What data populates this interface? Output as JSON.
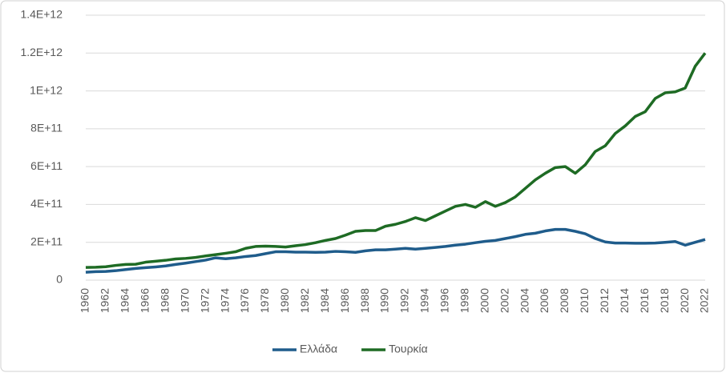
{
  "chart_data": {
    "type": "line",
    "x": [
      1960,
      1961,
      1962,
      1963,
      1964,
      1965,
      1966,
      1967,
      1968,
      1969,
      1970,
      1971,
      1972,
      1973,
      1974,
      1975,
      1976,
      1977,
      1978,
      1979,
      1980,
      1981,
      1982,
      1983,
      1984,
      1985,
      1986,
      1987,
      1988,
      1989,
      1990,
      1991,
      1992,
      1993,
      1994,
      1995,
      1996,
      1997,
      1998,
      1999,
      2000,
      2001,
      2002,
      2003,
      2004,
      2005,
      2006,
      2007,
      2008,
      2009,
      2010,
      2011,
      2012,
      2013,
      2014,
      2015,
      2016,
      2017,
      2018,
      2019,
      2020,
      2021,
      2022
    ],
    "series": [
      {
        "name": "Ελλάδα",
        "color": "#1f5c8b",
        "values": [
          42000000000.0,
          45000000000.0,
          46000000000.0,
          50000000000.0,
          56000000000.0,
          62000000000.0,
          66000000000.0,
          70000000000.0,
          75000000000.0,
          83000000000.0,
          90000000000.0,
          98000000000.0,
          106000000000.0,
          118000000000.0,
          113000000000.0,
          118000000000.0,
          125000000000.0,
          130000000000.0,
          140000000000.0,
          150000000000.0,
          150000000000.0,
          148000000000.0,
          148000000000.0,
          147000000000.0,
          148000000000.0,
          152000000000.0,
          150000000000.0,
          147000000000.0,
          155000000000.0,
          160000000000.0,
          160000000000.0,
          164000000000.0,
          168000000000.0,
          164000000000.0,
          168000000000.0,
          173000000000.0,
          178000000000.0,
          185000000000.0,
          190000000000.0,
          198000000000.0,
          205000000000.0,
          210000000000.0,
          220000000000.0,
          230000000000.0,
          242000000000.0,
          248000000000.0,
          260000000000.0,
          268000000000.0,
          268000000000.0,
          258000000000.0,
          245000000000.0,
          220000000000.0,
          202000000000.0,
          196000000000.0,
          196000000000.0,
          195000000000.0,
          195000000000.0,
          196000000000.0,
          200000000000.0,
          204000000000.0,
          185000000000.0,
          200000000000.0,
          215000000000.0
        ]
      },
      {
        "name": "Τουρκία",
        "color": "#1e6b24",
        "values": [
          67000000000.0,
          68000000000.0,
          71000000000.0,
          78000000000.0,
          83000000000.0,
          84000000000.0,
          95000000000.0,
          100000000000.0,
          105000000000.0,
          112000000000.0,
          115000000000.0,
          120000000000.0,
          128000000000.0,
          135000000000.0,
          142000000000.0,
          150000000000.0,
          168000000000.0,
          178000000000.0,
          180000000000.0,
          178000000000.0,
          175000000000.0,
          182000000000.0,
          188000000000.0,
          198000000000.0,
          210000000000.0,
          220000000000.0,
          238000000000.0,
          258000000000.0,
          262000000000.0,
          262000000000.0,
          285000000000.0,
          295000000000.0,
          310000000000.0,
          330000000000.0,
          315000000000.0,
          340000000000.0,
          365000000000.0,
          390000000000.0,
          400000000000.0,
          385000000000.0,
          415000000000.0,
          390000000000.0,
          410000000000.0,
          440000000000.0,
          485000000000.0,
          530000000000.0,
          565000000000.0,
          595000000000.0,
          600000000000.0,
          565000000000.0,
          610000000000.0,
          680000000000.0,
          710000000000.0,
          775000000000.0,
          815000000000.0,
          865000000000.0,
          890000000000.0,
          960000000000.0,
          990000000000.0,
          995000000000.0,
          1015000000000.0,
          1130000000000.0,
          1200000000000.0
        ]
      }
    ],
    "xlim": [
      1960,
      2022
    ],
    "xticks": [
      1960,
      1962,
      1964,
      1966,
      1968,
      1970,
      1972,
      1974,
      1976,
      1978,
      1980,
      1982,
      1984,
      1986,
      1988,
      1990,
      1992,
      1994,
      1996,
      1998,
      2000,
      2002,
      2004,
      2006,
      2008,
      2010,
      2012,
      2014,
      2016,
      2018,
      2020,
      2022
    ],
    "ylim": [
      0,
      1400000000000.0
    ],
    "yticks": [
      0,
      {
        "value": 200000000000.0,
        "label": "2E+11"
      },
      {
        "value": 400000000000.0,
        "label": "4E+11"
      },
      {
        "value": 600000000000.0,
        "label": "6E+11"
      },
      {
        "value": 800000000000.0,
        "label": "8E+11"
      },
      {
        "value": 1000000000000.0,
        "label": "1E+12"
      },
      {
        "value": 1200000000000.0,
        "label": "1.2E+12"
      },
      {
        "value": 1400000000000.0,
        "label": "1.4E+12"
      }
    ],
    "grid": true,
    "legend": "bottom"
  }
}
